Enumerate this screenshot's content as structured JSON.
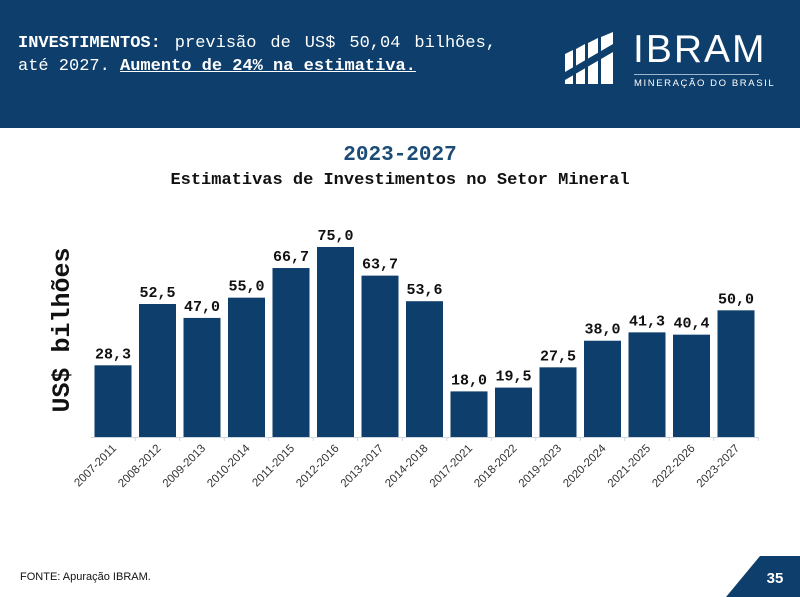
{
  "header": {
    "lead_bold": "INVESTIMENTOS:",
    "lead_text": " previsão de US$ 50,04 bilhões, até 2027. ",
    "highlight": "Aumento de 24% na estimativa."
  },
  "brand": {
    "name": "IBRAM",
    "tagline": "MINERAÇÃO DO BRASIL"
  },
  "chart_data": {
    "type": "bar",
    "title": "Estimativas de Investimentos no Setor Mineral",
    "subtitle": "2023-2027",
    "ylabel": "US$ bilhões",
    "xlabel": "",
    "categories": [
      "2007-2011",
      "2008-2012",
      "2009-2013",
      "2010-2014",
      "2011-2015",
      "2012-2016",
      "2013-2017",
      "2014-2018",
      "2017-2021",
      "2018-2022",
      "2019-2023",
      "2020-2024",
      "2021-2025",
      "2022-2026",
      "2023-2027"
    ],
    "values": [
      28.3,
      52.5,
      47.0,
      55.0,
      66.7,
      75.0,
      63.7,
      53.6,
      18.0,
      19.5,
      27.5,
      38.0,
      41.3,
      40.4,
      50.0
    ],
    "value_labels": [
      "28,3",
      "52,5",
      "47,0",
      "55,0",
      "66,7",
      "75,0",
      "63,7",
      "53,6",
      "18,0",
      "19,5",
      "27,5",
      "38,0",
      "41,3",
      "40,4",
      "50,0"
    ],
    "ylim": [
      0,
      75
    ],
    "grid": false,
    "legend": "none",
    "bar_color": "#0e3e6b"
  },
  "footer": {
    "source": "FONTE: Apuração IBRAM.",
    "page": "35"
  },
  "colors": {
    "header_bg": "#0e3e6b",
    "bar": "#0e3e6b",
    "accent_title": "#1b4b77"
  }
}
